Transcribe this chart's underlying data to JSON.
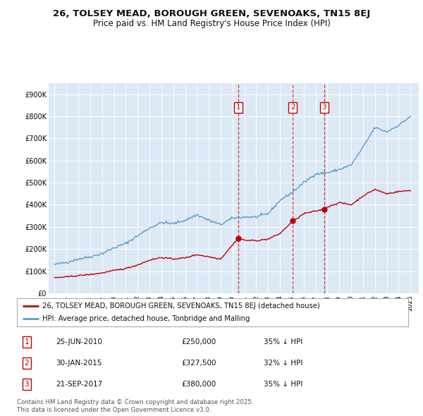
{
  "title_line1": "26, TOLSEY MEAD, BOROUGH GREEN, SEVENOAKS, TN15 8EJ",
  "title_line2": "Price paid vs. HM Land Registry's House Price Index (HPI)",
  "background_color": "#dce9f5",
  "plot_bg_color": "#dce9f5",
  "red_line_label": "26, TOLSEY MEAD, BOROUGH GREEN, SEVENOAKS, TN15 8EJ (detached house)",
  "blue_line_label": "HPI: Average price, detached house, Tonbridge and Malling",
  "footer": "Contains HM Land Registry data © Crown copyright and database right 2025.\nThis data is licensed under the Open Government Licence v3.0.",
  "transactions": [
    {
      "num": 1,
      "date": "25-JUN-2010",
      "price": 250000,
      "pct": "35% ↓ HPI",
      "year": 2010.49
    },
    {
      "num": 2,
      "date": "30-JAN-2015",
      "price": 327500,
      "pct": "32% ↓ HPI",
      "year": 2015.08
    },
    {
      "num": 3,
      "date": "21-SEP-2017",
      "price": 380000,
      "pct": "35% ↓ HPI",
      "year": 2017.72
    }
  ],
  "ylim": [
    0,
    950000
  ],
  "xlim_start": 1994.5,
  "xlim_end": 2025.7,
  "yticks": [
    0,
    100000,
    200000,
    300000,
    400000,
    500000,
    600000,
    700000,
    800000,
    900000
  ],
  "ytick_labels": [
    "£0",
    "£100K",
    "£200K",
    "£300K",
    "£400K",
    "£500K",
    "£600K",
    "£700K",
    "£800K",
    "£900K"
  ],
  "xticks": [
    1995,
    1996,
    1997,
    1998,
    1999,
    2000,
    2001,
    2002,
    2003,
    2004,
    2005,
    2006,
    2007,
    2008,
    2009,
    2010,
    2011,
    2012,
    2013,
    2014,
    2015,
    2016,
    2017,
    2018,
    2019,
    2020,
    2021,
    2022,
    2023,
    2024,
    2025
  ],
  "hpi_anchors": {
    "1995": 130000,
    "1996": 140000,
    "1997": 155000,
    "1998": 165000,
    "1999": 180000,
    "2000": 205000,
    "2001": 225000,
    "2002": 260000,
    "2003": 295000,
    "2004": 320000,
    "2005": 315000,
    "2006": 330000,
    "2007": 355000,
    "2008": 330000,
    "2009": 310000,
    "2010": 340000,
    "2011": 345000,
    "2012": 345000,
    "2013": 360000,
    "2014": 420000,
    "2015": 455000,
    "2016": 500000,
    "2017": 540000,
    "2018": 545000,
    "2019": 560000,
    "2020": 580000,
    "2021": 660000,
    "2022": 750000,
    "2023": 730000,
    "2024": 760000,
    "2025": 800000
  },
  "red_anchors": {
    "1995": 70000,
    "1996": 74000,
    "1997": 80000,
    "1998": 85000,
    "1999": 92000,
    "2000": 103000,
    "2001": 112000,
    "2002": 128000,
    "2003": 150000,
    "2004": 162000,
    "2005": 155000,
    "2006": 160000,
    "2007": 175000,
    "2008": 165000,
    "2009": 155000,
    "2010.49": 250000,
    "2011": 240000,
    "2012": 238000,
    "2013": 245000,
    "2014": 270000,
    "2015.08": 327500,
    "2015.5": 340000,
    "2016": 360000,
    "2017.72": 380000,
    "2018": 390000,
    "2019": 410000,
    "2020": 400000,
    "2021": 440000,
    "2022": 470000,
    "2023": 450000,
    "2024": 460000,
    "2025": 465000
  }
}
